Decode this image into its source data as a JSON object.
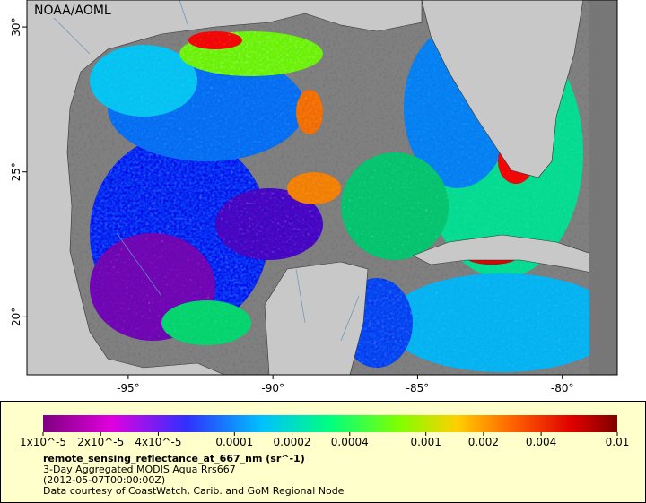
{
  "map": {
    "watermark": "NOAA/AOML",
    "xlim": [
      -98.5,
      -78.1
    ],
    "ylim": [
      18,
      30.93
    ],
    "xticks": [
      {
        "value": -95,
        "label": "-95°"
      },
      {
        "value": -90,
        "label": "-90°"
      },
      {
        "value": -85,
        "label": "-85°"
      },
      {
        "value": -80,
        "label": "-80°"
      }
    ],
    "yticks": [
      {
        "value": 20,
        "label": "20°"
      },
      {
        "value": 25,
        "label": "25°"
      },
      {
        "value": 30,
        "label": "30°"
      }
    ]
  },
  "colorbar": {
    "scale": "log",
    "lim": [
      1e-05,
      0.01
    ],
    "ticks": [
      {
        "value": 1e-05,
        "label": "1x10^-5"
      },
      {
        "value": 2e-05,
        "label": "2x10^-5"
      },
      {
        "value": 4e-05,
        "label": "4x10^-5"
      },
      {
        "value": 0.0001,
        "label": "0.0001"
      },
      {
        "value": 0.0002,
        "label": "0.0002"
      },
      {
        "value": 0.0004,
        "label": "0.0004"
      },
      {
        "value": 0.001,
        "label": "0.001"
      },
      {
        "value": 0.002,
        "label": "0.002"
      },
      {
        "value": 0.004,
        "label": "0.004"
      },
      {
        "value": 0.01,
        "label": "0.01"
      }
    ]
  },
  "caption": {
    "variable": "remote_sensing_reflectance_at_667_nm (sr^-1)",
    "description": "3-Day Aggregated MODIS Aqua Rrs667",
    "date": "(2012-05-07T00:00:00Z)",
    "credit": "Data courtesy of CoastWatch, Carib. and GoM Regional Node"
  }
}
